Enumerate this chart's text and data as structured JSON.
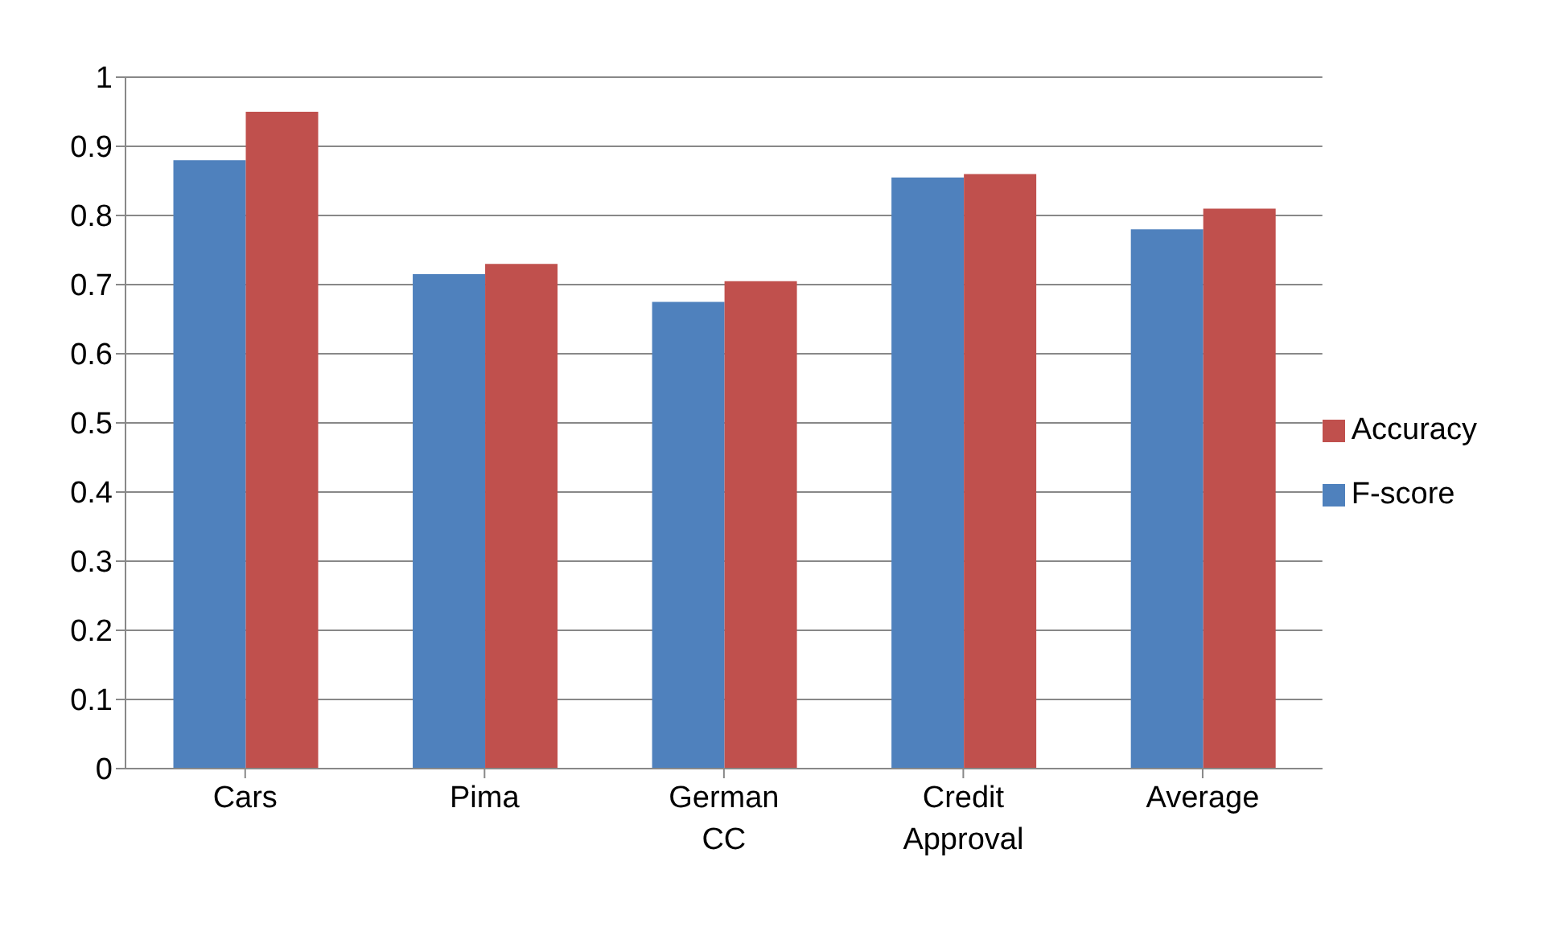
{
  "chart_data": {
    "type": "bar",
    "categories": [
      "Cars",
      "Pima",
      "German CC",
      "Credit Approval",
      "Average"
    ],
    "series": [
      {
        "name": "F-score",
        "color": "#4f81bd",
        "values": [
          0.88,
          0.715,
          0.675,
          0.855,
          0.78
        ]
      },
      {
        "name": "Accuracy",
        "color": "#c0504d",
        "values": [
          0.95,
          0.73,
          0.705,
          0.86,
          0.81
        ]
      }
    ],
    "ylim": [
      0,
      1
    ],
    "yticks": [
      0,
      0.1,
      0.2,
      0.3,
      0.4,
      0.5,
      0.6,
      0.7,
      0.8,
      0.9,
      1
    ],
    "grid": "y",
    "legend": "right"
  }
}
